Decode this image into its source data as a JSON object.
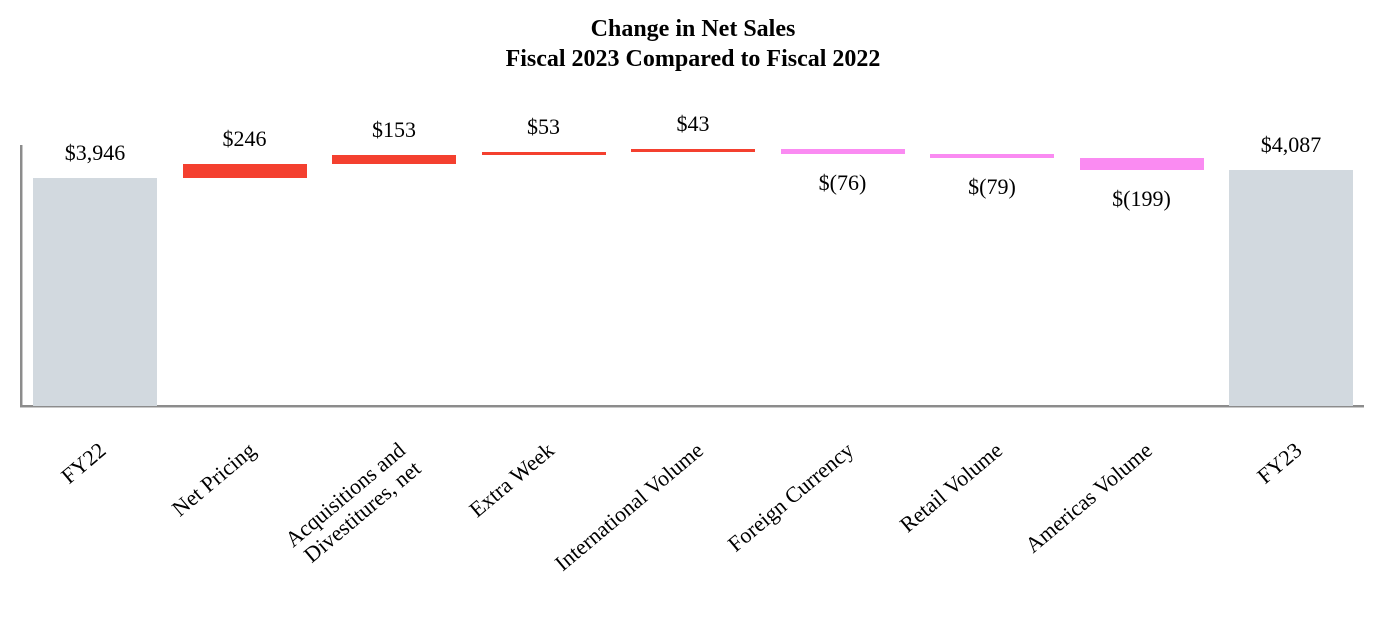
{
  "title": {
    "line1": "Change in Net Sales",
    "line2": "Fiscal 2023 Compared to Fiscal 2022"
  },
  "chart_data": {
    "type": "bar",
    "subtype": "waterfall",
    "title": "Change in Net Sales",
    "subtitle": "Fiscal 2023 Compared to Fiscal 2022",
    "ylim": [
      0,
      4441
    ],
    "grid": false,
    "legend": "none",
    "categories": [
      "FY22",
      "Net Pricing",
      "Acquisitions and Divestitures, net",
      "Extra Week",
      "International Volume",
      "Foreign Currency",
      "Retail Volume",
      "Americas Volume",
      "FY23"
    ],
    "steps": [
      {
        "category": "FY22",
        "category_lines": [
          "FY22"
        ],
        "kind": "total",
        "value": 3946,
        "label": "$3,946"
      },
      {
        "category": "Net Pricing",
        "category_lines": [
          "Net Pricing"
        ],
        "kind": "increase",
        "value": 246,
        "label": "$246"
      },
      {
        "category": "Acquisitions and Divestitures, net",
        "category_lines": [
          "Acquisitions and",
          "Divestitures, net"
        ],
        "kind": "increase",
        "value": 153,
        "label": "$153"
      },
      {
        "category": "Extra Week",
        "category_lines": [
          "Extra Week"
        ],
        "kind": "increase",
        "value": 53,
        "label": "$53"
      },
      {
        "category": "International Volume",
        "category_lines": [
          "International Volume"
        ],
        "kind": "increase",
        "value": 43,
        "label": "$43"
      },
      {
        "category": "Foreign Currency",
        "category_lines": [
          "Foreign Currency"
        ],
        "kind": "decrease",
        "value": -76,
        "label": "$(76)"
      },
      {
        "category": "Retail Volume",
        "category_lines": [
          "Retail Volume"
        ],
        "kind": "decrease",
        "value": -79,
        "label": "$(79)"
      },
      {
        "category": "Americas Volume",
        "category_lines": [
          "Americas Volume"
        ],
        "kind": "decrease",
        "value": -199,
        "label": "$(199)"
      },
      {
        "category": "FY23",
        "category_lines": [
          "FY23"
        ],
        "kind": "total",
        "value": 4087,
        "label": "$4,087"
      }
    ],
    "colors": {
      "total": "#d2d9df",
      "increase": "#f4402f",
      "decrease": "#fa8bf2",
      "axis": "#8c8c8c",
      "axis_shadow": "#c9c9c9",
      "label_text": "#000000"
    }
  }
}
